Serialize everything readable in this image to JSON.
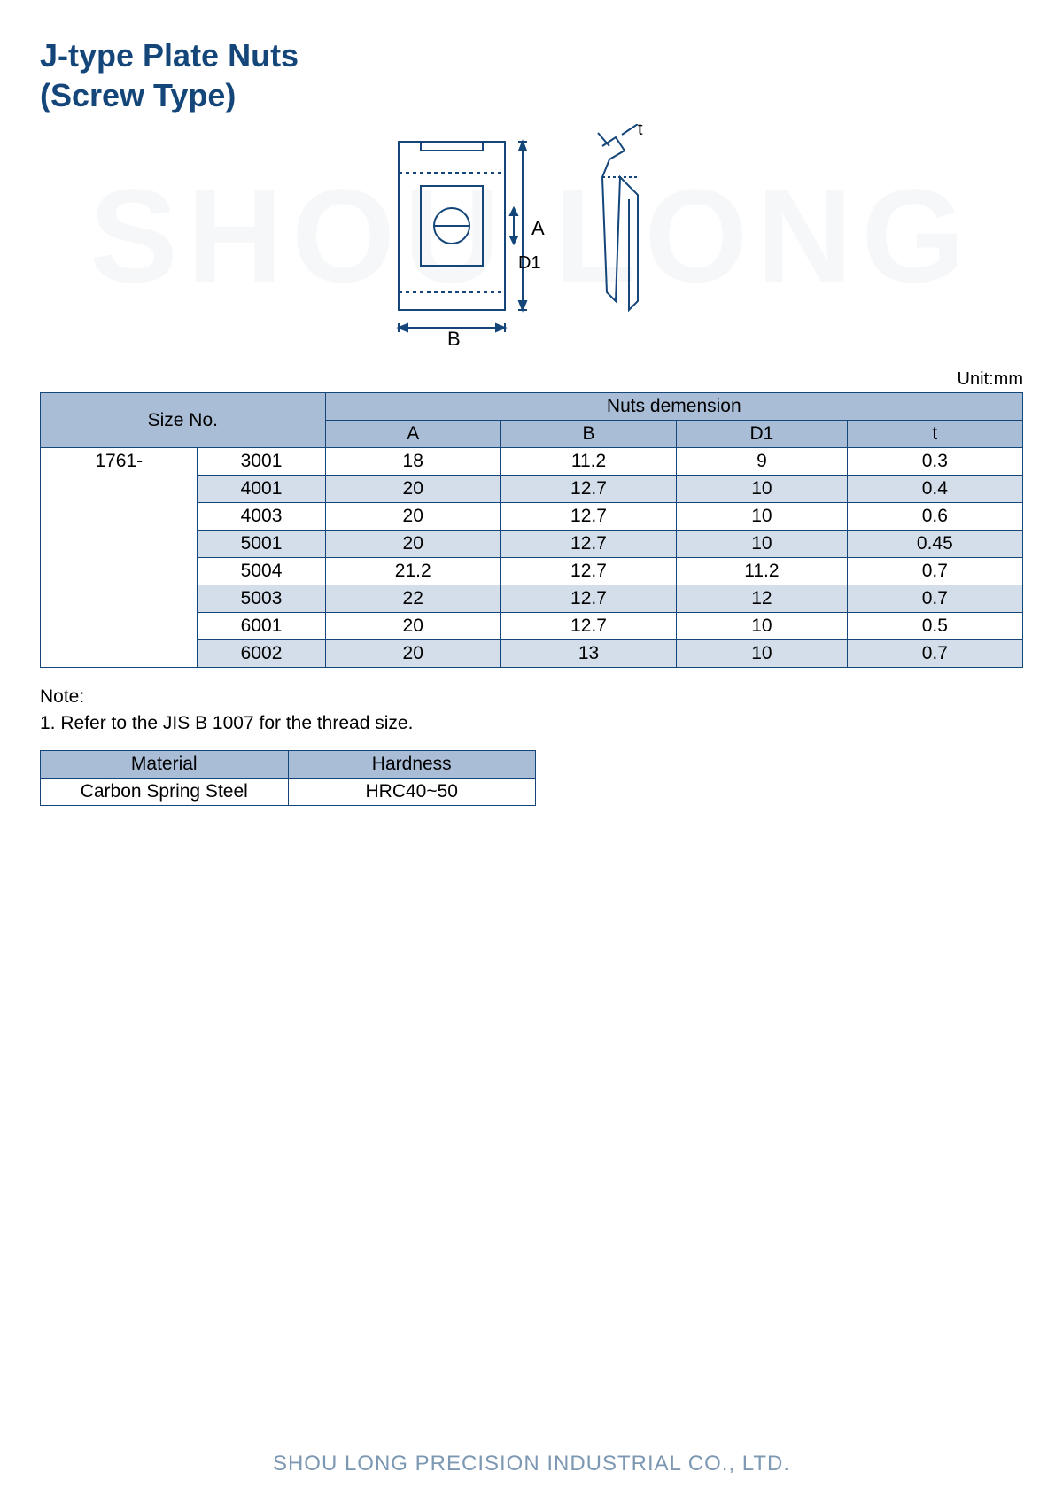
{
  "watermark": "SHOU LONG",
  "title_line1": "J-type Plate Nuts",
  "title_line2": "(Screw Type)",
  "unit_label": "Unit:mm",
  "diagram": {
    "label_A": "A",
    "label_B": "B",
    "label_D1": "D1",
    "label_t": "t",
    "stroke": "#14467a",
    "fill": "#ffffff"
  },
  "spec_table": {
    "header_size": "Size No.",
    "header_group": "Nuts demension",
    "cols": [
      "A",
      "B",
      "D1",
      "t"
    ],
    "prefix": "1761-",
    "rows": [
      {
        "code": "3001",
        "A": "18",
        "B": "11.2",
        "D1": "9",
        "t": "0.3",
        "alt": false
      },
      {
        "code": "4001",
        "A": "20",
        "B": "12.7",
        "D1": "10",
        "t": "0.4",
        "alt": true
      },
      {
        "code": "4003",
        "A": "20",
        "B": "12.7",
        "D1": "10",
        "t": "0.6",
        "alt": false
      },
      {
        "code": "5001",
        "A": "20",
        "B": "12.7",
        "D1": "10",
        "t": "0.45",
        "alt": true
      },
      {
        "code": "5004",
        "A": "21.2",
        "B": "12.7",
        "D1": "11.2",
        "t": "0.7",
        "alt": false
      },
      {
        "code": "5003",
        "A": "22",
        "B": "12.7",
        "D1": "12",
        "t": "0.7",
        "alt": true
      },
      {
        "code": "6001",
        "A": "20",
        "B": "12.7",
        "D1": "10",
        "t": "0.5",
        "alt": false
      },
      {
        "code": "6002",
        "A": "20",
        "B": "13",
        "D1": "10",
        "t": "0.7",
        "alt": true
      }
    ]
  },
  "note_heading": "Note:",
  "note_1": "1. Refer to the JIS B 1007 for the thread size.",
  "mat_table": {
    "h1": "Material",
    "h2": "Hardness",
    "v1": "Carbon Spring Steel",
    "v2": "HRC40~50"
  },
  "footer": "SHOU LONG PRECISION INDUSTRIAL CO., LTD."
}
